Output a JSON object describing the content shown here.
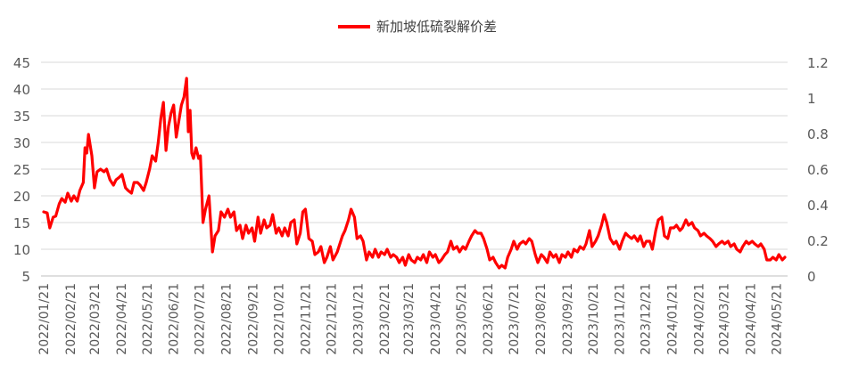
{
  "chart_data": {
    "type": "line",
    "series": [
      {
        "name": "新加坡低硫裂解价差",
        "color": "#ff0000",
        "points": [
          [
            "2022-01-21",
            17.0
          ],
          [
            "2022-01-25",
            16.8
          ],
          [
            "2022-01-28",
            14.0
          ],
          [
            "2022-02-01",
            16.0
          ],
          [
            "2022-02-04",
            16.2
          ],
          [
            "2022-02-08",
            18.5
          ],
          [
            "2022-02-11",
            19.5
          ],
          [
            "2022-02-15",
            18.8
          ],
          [
            "2022-02-18",
            20.5
          ],
          [
            "2022-02-22",
            19.0
          ],
          [
            "2022-02-25",
            20.0
          ],
          [
            "2022-03-01",
            19.0
          ],
          [
            "2022-03-04",
            21.0
          ],
          [
            "2022-03-08",
            22.5
          ],
          [
            "2022-03-10",
            29.0
          ],
          [
            "2022-03-12",
            28.0
          ],
          [
            "2022-03-14",
            31.5
          ],
          [
            "2022-03-16",
            29.5
          ],
          [
            "2022-03-18",
            27.5
          ],
          [
            "2022-03-21",
            21.5
          ],
          [
            "2022-03-24",
            24.5
          ],
          [
            "2022-03-28",
            25.0
          ],
          [
            "2022-04-01",
            24.5
          ],
          [
            "2022-04-04",
            25.0
          ],
          [
            "2022-04-08",
            23.0
          ],
          [
            "2022-04-12",
            22.0
          ],
          [
            "2022-04-15",
            23.0
          ],
          [
            "2022-04-19",
            23.5
          ],
          [
            "2022-04-22",
            24.0
          ],
          [
            "2022-04-26",
            21.5
          ],
          [
            "2022-04-29",
            21.0
          ],
          [
            "2022-05-03",
            20.5
          ],
          [
            "2022-05-06",
            22.5
          ],
          [
            "2022-05-10",
            22.5
          ],
          [
            "2022-05-13",
            22.0
          ],
          [
            "2022-05-17",
            21.0
          ],
          [
            "2022-05-20",
            22.5
          ],
          [
            "2022-05-24",
            25.0
          ],
          [
            "2022-05-27",
            27.5
          ],
          [
            "2022-05-31",
            26.5
          ],
          [
            "2022-06-03",
            30.0
          ],
          [
            "2022-06-06",
            34.5
          ],
          [
            "2022-06-09",
            37.5
          ],
          [
            "2022-06-12",
            28.5
          ],
          [
            "2022-06-15",
            33.0
          ],
          [
            "2022-06-18",
            35.5
          ],
          [
            "2022-06-21",
            37.0
          ],
          [
            "2022-06-24",
            31.0
          ],
          [
            "2022-06-27",
            34.0
          ],
          [
            "2022-06-30",
            37.0
          ],
          [
            "2022-07-03",
            38.5
          ],
          [
            "2022-07-06",
            42.0
          ],
          [
            "2022-07-08",
            32.0
          ],
          [
            "2022-07-10",
            36.0
          ],
          [
            "2022-07-12",
            28.0
          ],
          [
            "2022-07-14",
            27.0
          ],
          [
            "2022-07-17",
            29.0
          ],
          [
            "2022-07-20",
            27.0
          ],
          [
            "2022-07-22",
            27.5
          ],
          [
            "2022-07-25",
            15.0
          ],
          [
            "2022-07-28",
            17.5
          ],
          [
            "2022-08-01",
            20.0
          ],
          [
            "2022-08-05",
            9.5
          ],
          [
            "2022-08-08",
            12.5
          ],
          [
            "2022-08-12",
            13.5
          ],
          [
            "2022-08-15",
            17.0
          ],
          [
            "2022-08-19",
            16.0
          ],
          [
            "2022-08-23",
            17.5
          ],
          [
            "2022-08-26",
            16.0
          ],
          [
            "2022-08-30",
            17.0
          ],
          [
            "2022-09-02",
            13.5
          ],
          [
            "2022-09-06",
            14.5
          ],
          [
            "2022-09-09",
            12.0
          ],
          [
            "2022-09-13",
            14.5
          ],
          [
            "2022-09-16",
            13.0
          ],
          [
            "2022-09-20",
            14.0
          ],
          [
            "2022-09-23",
            11.5
          ],
          [
            "2022-09-27",
            16.0
          ],
          [
            "2022-09-30",
            13.0
          ],
          [
            "2022-10-04",
            15.5
          ],
          [
            "2022-10-07",
            14.0
          ],
          [
            "2022-10-11",
            14.5
          ],
          [
            "2022-10-14",
            16.5
          ],
          [
            "2022-10-18",
            13.0
          ],
          [
            "2022-10-21",
            14.0
          ],
          [
            "2022-10-25",
            12.5
          ],
          [
            "2022-10-28",
            14.0
          ],
          [
            "2022-11-01",
            12.5
          ],
          [
            "2022-11-04",
            15.0
          ],
          [
            "2022-11-08",
            15.5
          ],
          [
            "2022-11-11",
            11.0
          ],
          [
            "2022-11-15",
            13.0
          ],
          [
            "2022-11-18",
            17.0
          ],
          [
            "2022-11-21",
            17.5
          ],
          [
            "2022-11-25",
            12.0
          ],
          [
            "2022-11-29",
            11.5
          ],
          [
            "2022-12-02",
            9.0
          ],
          [
            "2022-12-06",
            9.5
          ],
          [
            "2022-12-09",
            10.5
          ],
          [
            "2022-12-13",
            7.5
          ],
          [
            "2022-12-16",
            8.5
          ],
          [
            "2022-12-20",
            10.5
          ],
          [
            "2022-12-23",
            8.0
          ],
          [
            "2022-12-28",
            9.5
          ],
          [
            "2023-01-03",
            12.5
          ],
          [
            "2023-01-06",
            13.5
          ],
          [
            "2023-01-10",
            15.5
          ],
          [
            "2023-01-13",
            17.5
          ],
          [
            "2023-01-17",
            16.0
          ],
          [
            "2023-01-20",
            12.0
          ],
          [
            "2023-01-24",
            12.5
          ],
          [
            "2023-01-27",
            11.5
          ],
          [
            "2023-01-31",
            8.0
          ],
          [
            "2023-02-03",
            9.5
          ],
          [
            "2023-02-07",
            8.5
          ],
          [
            "2023-02-10",
            10.0
          ],
          [
            "2023-02-14",
            8.5
          ],
          [
            "2023-02-17",
            9.5
          ],
          [
            "2023-02-21",
            9.0
          ],
          [
            "2023-02-24",
            10.0
          ],
          [
            "2023-02-28",
            8.5
          ],
          [
            "2023-03-03",
            9.0
          ],
          [
            "2023-03-07",
            8.5
          ],
          [
            "2023-03-10",
            7.5
          ],
          [
            "2023-03-14",
            8.5
          ],
          [
            "2023-03-17",
            7.0
          ],
          [
            "2023-03-21",
            9.0
          ],
          [
            "2023-03-24",
            8.0
          ],
          [
            "2023-03-28",
            7.5
          ],
          [
            "2023-03-31",
            8.5
          ],
          [
            "2023-04-04",
            8.0
          ],
          [
            "2023-04-07",
            9.0
          ],
          [
            "2023-04-11",
            7.5
          ],
          [
            "2023-04-14",
            9.5
          ],
          [
            "2023-04-18",
            8.5
          ],
          [
            "2023-04-21",
            9.0
          ],
          [
            "2023-04-25",
            7.5
          ],
          [
            "2023-04-28",
            8.0
          ],
          [
            "2023-05-02",
            9.0
          ],
          [
            "2023-05-05",
            9.5
          ],
          [
            "2023-05-09",
            11.5
          ],
          [
            "2023-05-12",
            10.0
          ],
          [
            "2023-05-16",
            10.5
          ],
          [
            "2023-05-19",
            9.5
          ],
          [
            "2023-05-23",
            10.5
          ],
          [
            "2023-05-26",
            10.0
          ],
          [
            "2023-05-30",
            11.5
          ],
          [
            "2023-06-02",
            12.5
          ],
          [
            "2023-06-06",
            13.5
          ],
          [
            "2023-06-09",
            13.0
          ],
          [
            "2023-06-13",
            13.0
          ],
          [
            "2023-06-16",
            12.0
          ],
          [
            "2023-06-20",
            10.0
          ],
          [
            "2023-06-23",
            8.0
          ],
          [
            "2023-06-27",
            8.5
          ],
          [
            "2023-06-30",
            7.5
          ],
          [
            "2023-07-04",
            6.5
          ],
          [
            "2023-07-07",
            7.0
          ],
          [
            "2023-07-11",
            6.5
          ],
          [
            "2023-07-14",
            8.5
          ],
          [
            "2023-07-18",
            10.0
          ],
          [
            "2023-07-21",
            11.5
          ],
          [
            "2023-07-25",
            10.0
          ],
          [
            "2023-07-28",
            11.0
          ],
          [
            "2023-08-01",
            11.5
          ],
          [
            "2023-08-04",
            11.0
          ],
          [
            "2023-08-08",
            12.0
          ],
          [
            "2023-08-11",
            11.5
          ],
          [
            "2023-08-15",
            9.0
          ],
          [
            "2023-08-18",
            7.5
          ],
          [
            "2023-08-22",
            9.0
          ],
          [
            "2023-08-25",
            8.5
          ],
          [
            "2023-08-29",
            7.5
          ],
          [
            "2023-09-01",
            9.5
          ],
          [
            "2023-09-05",
            8.5
          ],
          [
            "2023-09-08",
            9.0
          ],
          [
            "2023-09-12",
            7.5
          ],
          [
            "2023-09-15",
            9.0
          ],
          [
            "2023-09-19",
            8.5
          ],
          [
            "2023-09-22",
            9.5
          ],
          [
            "2023-09-26",
            8.5
          ],
          [
            "2023-09-29",
            10.0
          ],
          [
            "2023-10-03",
            9.5
          ],
          [
            "2023-10-06",
            10.5
          ],
          [
            "2023-10-10",
            10.0
          ],
          [
            "2023-10-13",
            11.0
          ],
          [
            "2023-10-17",
            13.5
          ],
          [
            "2023-10-20",
            10.5
          ],
          [
            "2023-10-24",
            11.5
          ],
          [
            "2023-10-27",
            12.5
          ],
          [
            "2023-10-31",
            14.5
          ],
          [
            "2023-11-03",
            16.5
          ],
          [
            "2023-11-06",
            15.0
          ],
          [
            "2023-11-10",
            12.0
          ],
          [
            "2023-11-14",
            11.0
          ],
          [
            "2023-11-17",
            11.5
          ],
          [
            "2023-11-21",
            10.0
          ],
          [
            "2023-11-24",
            11.5
          ],
          [
            "2023-11-28",
            13.0
          ],
          [
            "2023-12-01",
            12.5
          ],
          [
            "2023-12-05",
            12.0
          ],
          [
            "2023-12-08",
            12.5
          ],
          [
            "2023-12-12",
            11.5
          ],
          [
            "2023-12-15",
            12.5
          ],
          [
            "2023-12-19",
            10.5
          ],
          [
            "2023-12-22",
            11.5
          ],
          [
            "2023-12-26",
            11.5
          ],
          [
            "2023-12-29",
            10.0
          ],
          [
            "2024-01-02",
            13.5
          ],
          [
            "2024-01-05",
            15.5
          ],
          [
            "2024-01-09",
            16.0
          ],
          [
            "2024-01-12",
            12.5
          ],
          [
            "2024-01-16",
            12.0
          ],
          [
            "2024-01-19",
            14.0
          ],
          [
            "2024-01-23",
            14.0
          ],
          [
            "2024-01-26",
            14.5
          ],
          [
            "2024-01-30",
            13.5
          ],
          [
            "2024-02-02",
            14.0
          ],
          [
            "2024-02-06",
            15.5
          ],
          [
            "2024-02-09",
            14.5
          ],
          [
            "2024-02-13",
            15.0
          ],
          [
            "2024-02-16",
            14.0
          ],
          [
            "2024-02-20",
            13.5
          ],
          [
            "2024-02-23",
            12.5
          ],
          [
            "2024-02-27",
            13.0
          ],
          [
            "2024-03-01",
            12.5
          ],
          [
            "2024-03-05",
            12.0
          ],
          [
            "2024-03-08",
            11.5
          ],
          [
            "2024-03-12",
            10.5
          ],
          [
            "2024-03-15",
            11.0
          ],
          [
            "2024-03-19",
            11.5
          ],
          [
            "2024-03-22",
            11.0
          ],
          [
            "2024-03-26",
            11.5
          ],
          [
            "2024-03-29",
            10.5
          ],
          [
            "2024-04-02",
            11.0
          ],
          [
            "2024-04-05",
            10.0
          ],
          [
            "2024-04-09",
            9.5
          ],
          [
            "2024-04-12",
            10.5
          ],
          [
            "2024-04-16",
            11.5
          ],
          [
            "2024-04-19",
            11.0
          ],
          [
            "2024-04-23",
            11.5
          ],
          [
            "2024-04-26",
            11.0
          ],
          [
            "2024-04-30",
            10.5
          ],
          [
            "2024-05-03",
            11.0
          ],
          [
            "2024-05-07",
            10.0
          ],
          [
            "2024-05-10",
            8.0
          ],
          [
            "2024-05-14",
            8.0
          ],
          [
            "2024-05-17",
            8.5
          ],
          [
            "2024-05-21",
            8.0
          ],
          [
            "2024-05-24",
            9.0
          ],
          [
            "2024-05-28",
            8.0
          ],
          [
            "2024-05-31",
            8.5
          ]
        ]
      }
    ],
    "x_axis": {
      "type": "date",
      "range": [
        "2022-01-21",
        "2024-05-31"
      ],
      "tick_labels": [
        "2022/01/21",
        "2022/02/21",
        "2022/03/21",
        "2022/04/21",
        "2022/05/21",
        "2022/06/21",
        "2022/07/21",
        "2022/08/21",
        "2022/09/21",
        "2022/10/21",
        "2022/11/21",
        "2022/12/21",
        "2023/01/21",
        "2023/02/21",
        "2023/03/21",
        "2023/04/21",
        "2023/05/21",
        "2023/06/21",
        "2023/07/21",
        "2023/08/21",
        "2023/09/21",
        "2023/10/21",
        "2023/11/21",
        "2023/12/21",
        "2024/01/21",
        "2024/02/21",
        "2024/03/21",
        "2024/04/21",
        "2024/05/21"
      ]
    },
    "y_left": {
      "ylim": [
        5,
        45
      ],
      "ticks": [
        5,
        10,
        15,
        20,
        25,
        30,
        35,
        40,
        45
      ]
    },
    "y_right": {
      "ylim": [
        0,
        1.2
      ],
      "ticks": [
        "0",
        "0.2",
        "0.4",
        "0.6",
        "0.8",
        "1",
        "1.2"
      ]
    },
    "grid": true,
    "legend_position": "top-center"
  }
}
